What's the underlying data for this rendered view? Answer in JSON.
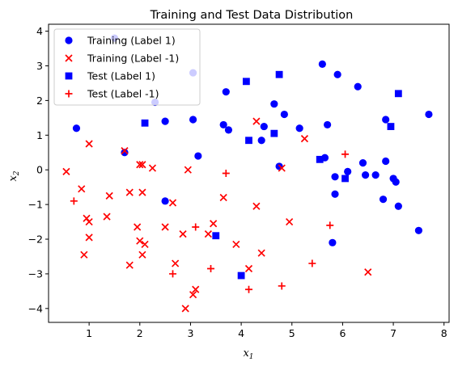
{
  "chart_data": {
    "type": "scatter",
    "title": "Training and Test Data Distribution",
    "xlabel": "x_1",
    "ylabel": "x_2",
    "xlim": [
      0.2,
      8.1
    ],
    "ylim": [
      -4.4,
      4.2
    ],
    "xticks": [
      1,
      2,
      3,
      4,
      5,
      6,
      7,
      8
    ],
    "yticks": [
      -4,
      -3,
      -2,
      -1,
      0,
      1,
      2,
      3,
      4
    ],
    "grid": false,
    "legend_position": "upper-left",
    "series": [
      {
        "name": "Training (Label 1)",
        "marker": "circle",
        "color": "#0000ff",
        "points": [
          [
            0.75,
            1.2
          ],
          [
            1.5,
            3.8
          ],
          [
            1.7,
            0.5
          ],
          [
            2.3,
            1.95
          ],
          [
            2.5,
            1.4
          ],
          [
            2.5,
            -0.9
          ],
          [
            3.05,
            1.45
          ],
          [
            3.05,
            2.8
          ],
          [
            3.15,
            0.4
          ],
          [
            3.65,
            1.3
          ],
          [
            3.7,
            2.25
          ],
          [
            3.75,
            1.15
          ],
          [
            4.4,
            0.85
          ],
          [
            4.45,
            1.25
          ],
          [
            4.65,
            1.9
          ],
          [
            4.75,
            0.1
          ],
          [
            4.85,
            1.6
          ],
          [
            5.15,
            1.2
          ],
          [
            5.6,
            3.05
          ],
          [
            5.65,
            0.35
          ],
          [
            5.7,
            1.3
          ],
          [
            5.8,
            -2.1
          ],
          [
            5.85,
            -0.7
          ],
          [
            5.85,
            -0.2
          ],
          [
            5.9,
            2.75
          ],
          [
            6.1,
            -0.05
          ],
          [
            6.3,
            2.4
          ],
          [
            6.4,
            0.2
          ],
          [
            6.45,
            -0.15
          ],
          [
            6.65,
            -0.15
          ],
          [
            6.8,
            -0.85
          ],
          [
            6.85,
            1.45
          ],
          [
            6.85,
            0.25
          ],
          [
            7.0,
            -0.25
          ],
          [
            7.05,
            -0.35
          ],
          [
            7.1,
            -1.05
          ],
          [
            7.5,
            -1.75
          ],
          [
            7.7,
            1.6
          ]
        ]
      },
      {
        "name": "Training (Label -1)",
        "marker": "x",
        "color": "#ff0000",
        "points": [
          [
            0.55,
            -0.05
          ],
          [
            0.85,
            -0.55
          ],
          [
            0.9,
            -2.45
          ],
          [
            0.95,
            -1.4
          ],
          [
            1.0,
            -1.5
          ],
          [
            1.0,
            0.75
          ],
          [
            1.0,
            -1.95
          ],
          [
            1.35,
            -1.35
          ],
          [
            1.4,
            -0.75
          ],
          [
            1.7,
            0.55
          ],
          [
            1.8,
            -0.65
          ],
          [
            1.8,
            -2.75
          ],
          [
            1.95,
            -1.65
          ],
          [
            2.0,
            -2.05
          ],
          [
            2.0,
            0.15
          ],
          [
            2.05,
            0.15
          ],
          [
            2.05,
            -0.65
          ],
          [
            2.05,
            -2.45
          ],
          [
            2.1,
            -2.15
          ],
          [
            2.25,
            0.05
          ],
          [
            2.5,
            -1.65
          ],
          [
            2.65,
            -0.95
          ],
          [
            2.7,
            -2.7
          ],
          [
            2.85,
            -1.85
          ],
          [
            2.9,
            -4.0
          ],
          [
            2.95,
            0.0
          ],
          [
            3.05,
            -3.6
          ],
          [
            3.1,
            -3.45
          ],
          [
            3.35,
            -1.85
          ],
          [
            3.45,
            -1.55
          ],
          [
            3.65,
            -0.8
          ],
          [
            3.9,
            -2.15
          ],
          [
            4.15,
            -2.85
          ],
          [
            4.3,
            1.4
          ],
          [
            4.3,
            -1.05
          ],
          [
            4.4,
            -2.4
          ],
          [
            4.8,
            0.05
          ],
          [
            4.95,
            -1.5
          ],
          [
            5.25,
            0.9
          ],
          [
            6.5,
            -2.95
          ]
        ]
      },
      {
        "name": "Test (Label 1)",
        "marker": "square",
        "color": "#0000ff",
        "points": [
          [
            2.1,
            1.35
          ],
          [
            3.5,
            -1.9
          ],
          [
            4.0,
            -3.05
          ],
          [
            4.1,
            2.55
          ],
          [
            4.15,
            0.85
          ],
          [
            4.75,
            2.75
          ],
          [
            4.65,
            1.05
          ],
          [
            5.55,
            0.3
          ],
          [
            6.05,
            -0.25
          ],
          [
            6.95,
            1.25
          ],
          [
            7.1,
            2.2
          ]
        ]
      },
      {
        "name": "Test (Label -1)",
        "marker": "plus",
        "color": "#ff0000",
        "points": [
          [
            0.7,
            -0.9
          ],
          [
            2.65,
            -3.0
          ],
          [
            3.1,
            -1.65
          ],
          [
            3.4,
            -2.85
          ],
          [
            3.7,
            -0.1
          ],
          [
            4.15,
            -3.45
          ],
          [
            4.8,
            -3.35
          ],
          [
            5.4,
            -2.7
          ],
          [
            5.75,
            -1.6
          ],
          [
            6.05,
            0.45
          ]
        ]
      }
    ]
  }
}
